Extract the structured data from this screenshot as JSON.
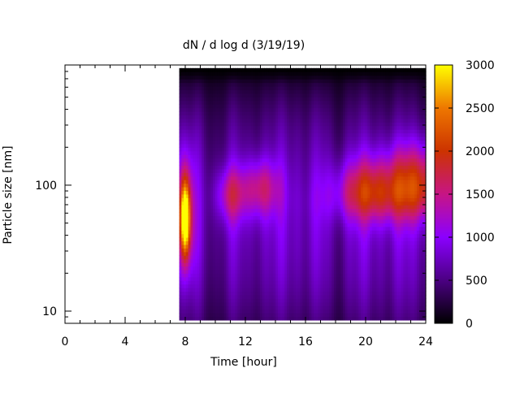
{
  "chart_data": {
    "type": "heatmap",
    "title": "dN / d log d (3/19/19)",
    "xlabel": "Time [hour]",
    "ylabel": "Particle size [nm]",
    "x_range": [
      0,
      24
    ],
    "x_ticks": [
      0,
      4,
      8,
      12,
      16,
      20,
      24
    ],
    "x_tick_labels": [
      "0",
      "4",
      "8",
      "12",
      "16",
      "20",
      "24"
    ],
    "y_scale": "log",
    "y_range": [
      8,
      900
    ],
    "y_ticks": [
      10,
      100
    ],
    "y_tick_labels": [
      "10",
      "100"
    ],
    "data_extent": {
      "x": [
        7.6,
        24
      ],
      "y": [
        8.5,
        850
      ]
    },
    "colorbar": {
      "range": [
        0,
        3000
      ],
      "ticks": [
        0,
        500,
        1000,
        1500,
        2000,
        2500,
        3000
      ],
      "tick_labels": [
        "0",
        "500",
        "1000",
        "1500",
        "2000",
        "2500",
        "3000"
      ],
      "palette": [
        "#000000",
        "#4b0082",
        "#8b00ff",
        "#c71585",
        "#cc3300",
        "#ee7700",
        "#ffff00"
      ]
    },
    "features": [
      {
        "time_h": 8.0,
        "size_nm": 55,
        "peak_value": 3000
      },
      {
        "time_h": 11.0,
        "size_nm": 85,
        "peak_value": 1650
      },
      {
        "time_h": 13.0,
        "size_nm": 95,
        "peak_value": 1750
      },
      {
        "time_h": 20.0,
        "size_nm": 95,
        "peak_value": 1850
      },
      {
        "time_h": 23.5,
        "size_nm": 110,
        "peak_value": 2100
      }
    ],
    "grid": false,
    "legend": "colorbar-right"
  }
}
